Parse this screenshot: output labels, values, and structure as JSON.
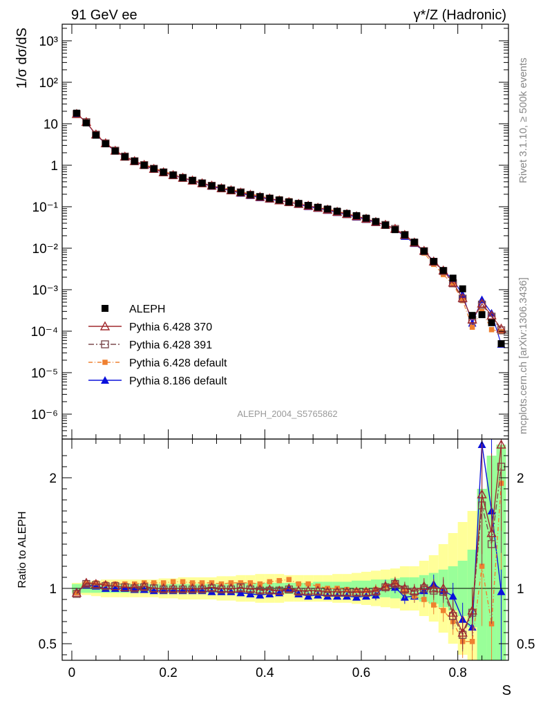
{
  "chart_data": {
    "type": "scatter",
    "title_left": "91 GeV ee",
    "title_right": "γ*/Z (Hadronic)",
    "ylabel": "1/σ  dσ/dS",
    "ratio_ylabel": "Ratio to ALEPH",
    "xlabel": "S",
    "side_label_top": "Rivet 3.1.10, ≥ 500k events",
    "side_label_bottom": "mcplots.cern.ch [arXiv:1306.3436]",
    "analysis_label": "ALEPH_2004_S5765862",
    "main_y_log_range": [
      -6.6,
      3.4
    ],
    "ratio_y_range": [
      0.35,
      2.35
    ],
    "x_range": [
      -0.02,
      0.905
    ],
    "main_y_ticks": [
      {
        "value": 3,
        "label": "10³"
      },
      {
        "value": 2,
        "label": "10²"
      },
      {
        "value": 1,
        "label": "10"
      },
      {
        "value": 0,
        "label": "1"
      },
      {
        "value": -1,
        "label": "10⁻¹"
      },
      {
        "value": -2,
        "label": "10⁻²"
      },
      {
        "value": -3,
        "label": "10⁻³"
      },
      {
        "value": -4,
        "label": "10⁻⁴"
      },
      {
        "value": -5,
        "label": "10⁻⁵"
      },
      {
        "value": -6,
        "label": "10⁻⁶"
      }
    ],
    "ratio_y_ticks": [
      {
        "value": 2,
        "label": "2"
      },
      {
        "value": 1,
        "label": "1"
      },
      {
        "value": 0.5,
        "label": "0.5"
      }
    ],
    "x_ticks": [
      {
        "value": 0,
        "label": "0"
      },
      {
        "value": 0.2,
        "label": "0.2"
      },
      {
        "value": 0.4,
        "label": "0.4"
      },
      {
        "value": 0.6,
        "label": "0.6"
      },
      {
        "value": 0.8,
        "label": "0.8"
      }
    ],
    "x": [
      0.01,
      0.03,
      0.05,
      0.07,
      0.09,
      0.11,
      0.13,
      0.15,
      0.17,
      0.19,
      0.21,
      0.23,
      0.25,
      0.27,
      0.29,
      0.31,
      0.33,
      0.35,
      0.37,
      0.39,
      0.41,
      0.43,
      0.45,
      0.47,
      0.49,
      0.51,
      0.53,
      0.55,
      0.57,
      0.59,
      0.61,
      0.63,
      0.65,
      0.67,
      0.69,
      0.71,
      0.73,
      0.75,
      0.77,
      0.79,
      0.81,
      0.83,
      0.85,
      0.87,
      0.89
    ],
    "data_values": [
      18.0,
      10.5,
      5.3,
      3.3,
      2.2,
      1.6,
      1.25,
      1.0,
      0.82,
      0.68,
      0.58,
      0.5,
      0.43,
      0.37,
      0.32,
      0.28,
      0.25,
      0.22,
      0.195,
      0.175,
      0.16,
      0.145,
      0.13,
      0.12,
      0.108,
      0.097,
      0.088,
      0.078,
      0.069,
      0.061,
      0.053,
      0.044,
      0.036,
      0.028,
      0.021,
      0.014,
      0.0085,
      0.0048,
      0.0029,
      0.0019,
      0.00105,
      0.00024,
      0.00025,
      0.00016,
      5e-05
    ],
    "data_band_inner": [
      0.04,
      0.04,
      0.04,
      0.04,
      0.04,
      0.04,
      0.04,
      0.04,
      0.04,
      0.04,
      0.04,
      0.04,
      0.04,
      0.04,
      0.04,
      0.04,
      0.04,
      0.05,
      0.05,
      0.05,
      0.05,
      0.05,
      0.05,
      0.05,
      0.05,
      0.06,
      0.06,
      0.06,
      0.06,
      0.07,
      0.07,
      0.08,
      0.08,
      0.09,
      0.1,
      0.1,
      0.12,
      0.14,
      0.17,
      0.2,
      0.25,
      0.35,
      0.9,
      1.2,
      1.3
    ],
    "data_band_outer": [
      0.05,
      0.06,
      0.07,
      0.08,
      0.08,
      0.08,
      0.08,
      0.08,
      0.08,
      0.09,
      0.09,
      0.1,
      0.1,
      0.1,
      0.1,
      0.11,
      0.11,
      0.12,
      0.12,
      0.13,
      0.13,
      0.13,
      0.12,
      0.12,
      0.12,
      0.12,
      0.12,
      0.13,
      0.13,
      0.14,
      0.15,
      0.16,
      0.17,
      0.18,
      0.2,
      0.2,
      0.25,
      0.3,
      0.4,
      0.5,
      0.6,
      0.7,
      0.9,
      1.2,
      1.3
    ],
    "series": [
      {
        "name": "ALEPH",
        "marker": "square-filled",
        "color": "#000000",
        "dash": "none"
      },
      {
        "name": "Pythia 6.428 370",
        "marker": "triangle-open",
        "color": "#a0282d",
        "dash": "none",
        "ratio": [
          0.96,
          1.05,
          1.04,
          1.03,
          1.02,
          1.01,
          1.01,
          1.02,
          1.0,
          1.0,
          1.0,
          1.0,
          1.0,
          1.0,
          1.01,
          1.0,
          1.0,
          1.0,
          1.0,
          0.99,
          0.99,
          0.98,
          1.0,
          0.98,
          0.98,
          0.98,
          0.97,
          0.97,
          0.97,
          0.97,
          0.97,
          0.98,
          1.02,
          1.05,
          1.0,
          0.98,
          1.02,
          1.0,
          1.0,
          0.78,
          0.6,
          0.8,
          1.85,
          1.5,
          2.3
        ]
      },
      {
        "name": "Pythia 6.428 391",
        "marker": "square-open",
        "color": "#7b4a4e",
        "dash": "8,3,2,3",
        "ratio": [
          0.95,
          1.04,
          1.03,
          1.02,
          1.02,
          1.01,
          1.0,
          1.01,
          1.0,
          0.99,
          0.99,
          0.99,
          0.99,
          0.99,
          1.0,
          0.99,
          0.99,
          1.01,
          0.99,
          0.98,
          0.98,
          0.98,
          0.99,
          0.97,
          0.97,
          0.97,
          0.96,
          0.96,
          0.96,
          0.96,
          0.96,
          0.97,
          1.01,
          1.04,
          0.99,
          0.97,
          1.0,
          0.98,
          0.97,
          0.75,
          0.58,
          0.78,
          1.75,
          1.4,
          2.1
        ]
      },
      {
        "name": "Pythia 6.428 default",
        "marker": "square-filled-small",
        "color": "#ef8030",
        "dash": "6,3,1,3",
        "ratio": [
          0.96,
          1.05,
          1.05,
          1.04,
          1.04,
          1.04,
          1.04,
          1.05,
          1.05,
          1.05,
          1.06,
          1.06,
          1.05,
          1.05,
          1.05,
          1.04,
          1.05,
          1.05,
          1.05,
          1.04,
          1.06,
          1.07,
          1.08,
          1.04,
          1.04,
          1.02,
          1.0,
          1.0,
          0.99,
          0.98,
          0.98,
          0.99,
          1.02,
          1.05,
          0.97,
          0.93,
          0.9,
          0.85,
          0.8,
          0.7,
          0.52,
          0.52,
          1.2,
          0.68,
          1.95
        ]
      },
      {
        "name": "Pythia 8.186 default",
        "marker": "triangle-filled",
        "color": "#0a10dc",
        "dash": "none",
        "ratio": [
          0.97,
          1.03,
          1.02,
          1.0,
          1.0,
          1.0,
          0.99,
          0.99,
          0.98,
          0.98,
          0.98,
          0.98,
          0.98,
          0.98,
          0.97,
          0.97,
          0.97,
          0.96,
          0.95,
          0.94,
          0.95,
          0.96,
          1.0,
          0.95,
          0.93,
          0.94,
          0.93,
          0.93,
          0.93,
          0.92,
          0.93,
          0.94,
          1.03,
          1.01,
          0.92,
          0.93,
          0.98,
          1.04,
          0.98,
          0.93,
          0.72,
          0.65,
          2.3,
          1.7,
          0.97
        ]
      }
    ]
  }
}
